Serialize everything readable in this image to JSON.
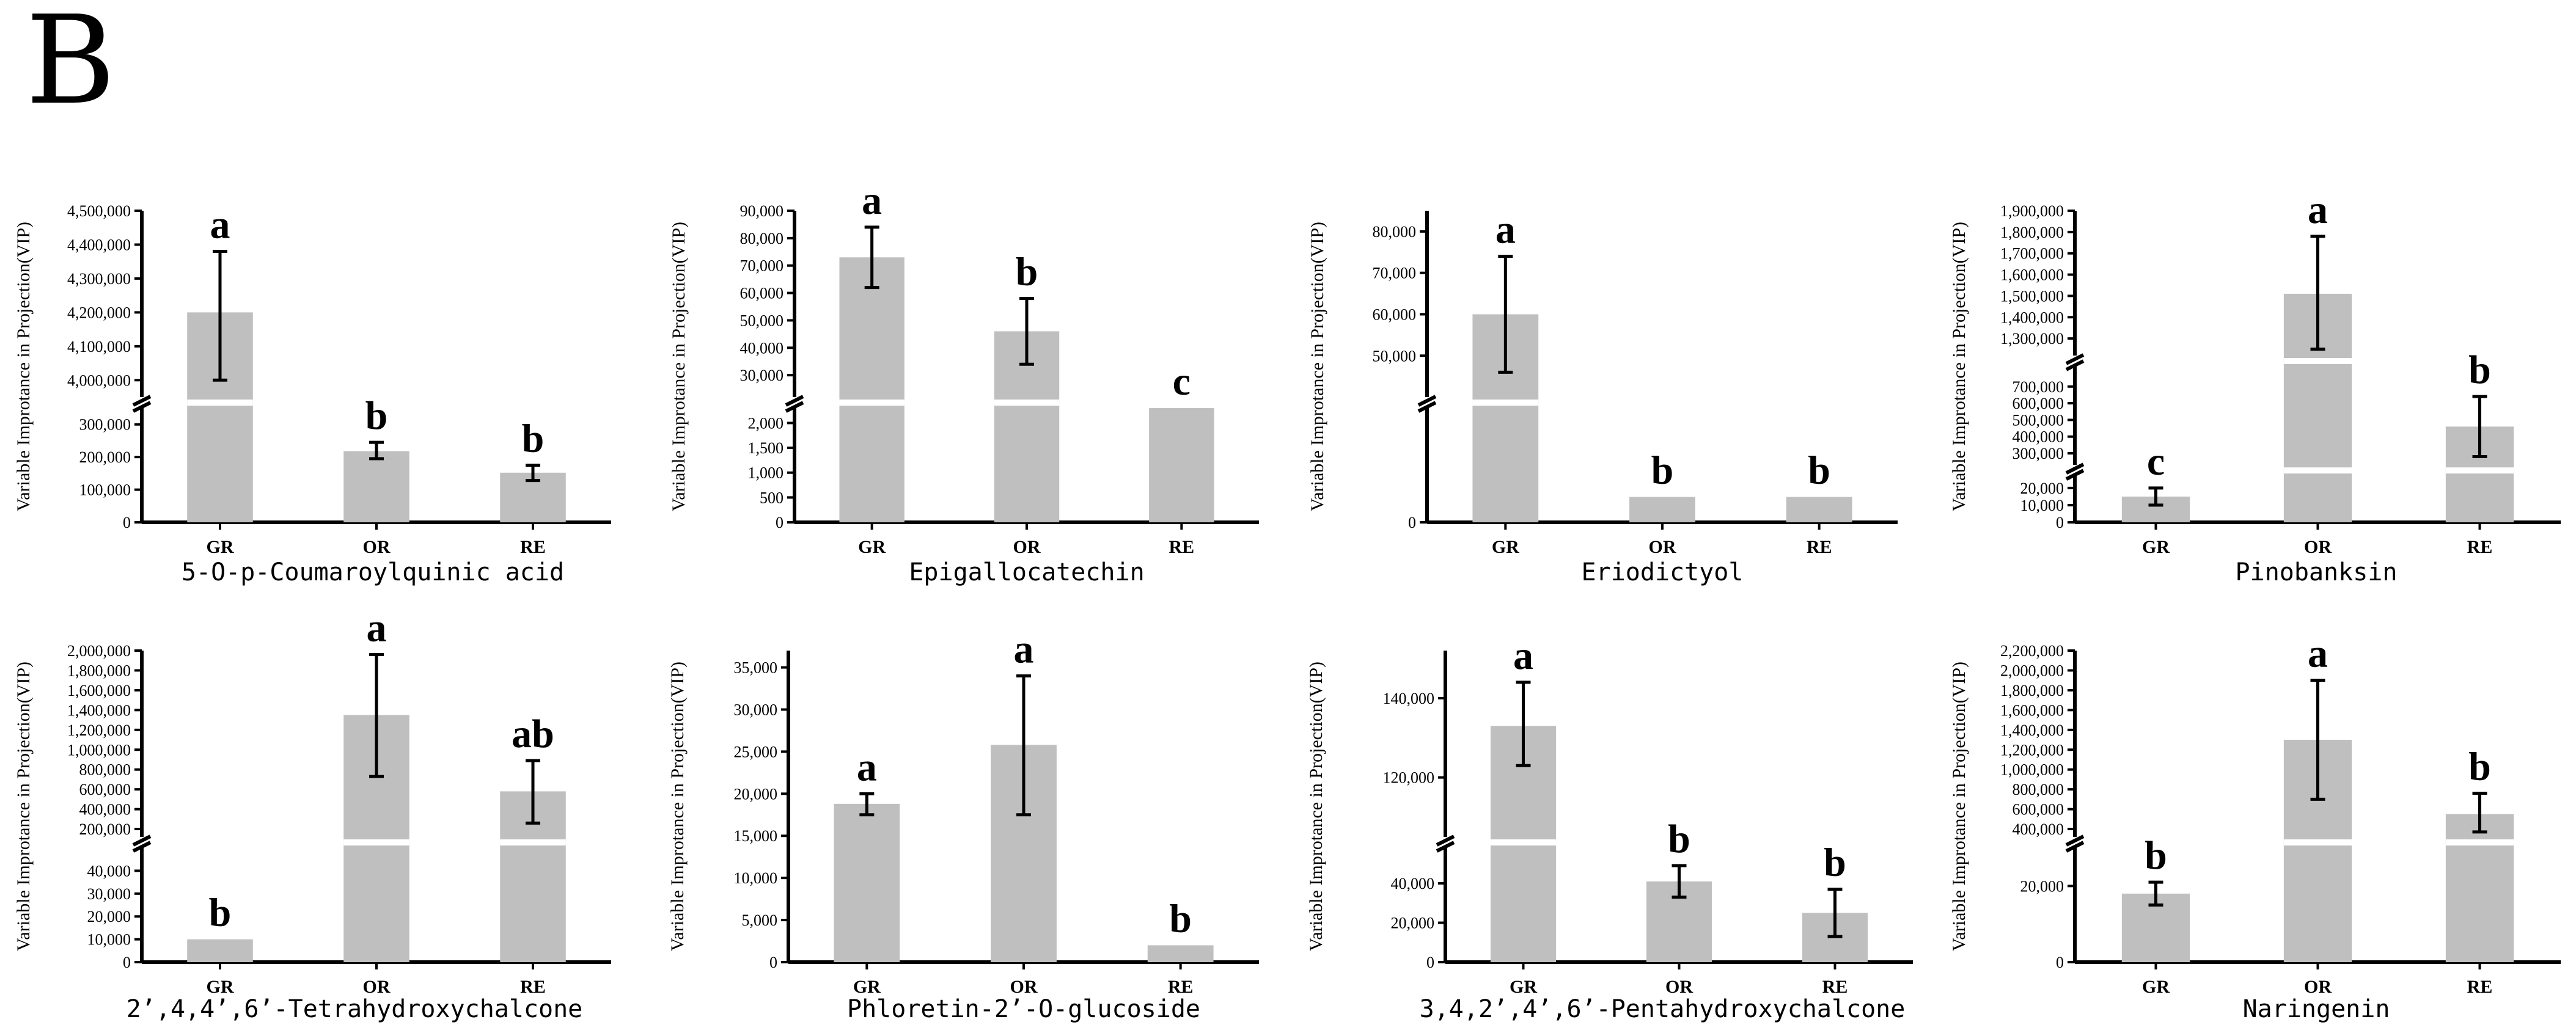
{
  "panel_label": "B",
  "chart_data": [
    {
      "type": "bar",
      "title": "5-O-p-Coumaroylquinic acid",
      "ylabel": "Variable Improtance in Projection(VIP)",
      "categories": [
        "GR",
        "OR",
        "RE"
      ],
      "values": [
        4200000,
        218000,
        152000
      ],
      "error_low": [
        4000000,
        195000,
        128000
      ],
      "error_high": [
        4380000,
        245000,
        175000
      ],
      "significance": [
        "a",
        "b",
        "b"
      ],
      "segments": [
        [
          0,
          350000
        ],
        [
          3950000,
          4500000
        ]
      ],
      "ticks": [
        [
          0,
          100000,
          200000,
          300000
        ],
        [
          4000000,
          4100000,
          4200000,
          4300000,
          4400000,
          4500000
        ]
      ],
      "tick_labels": [
        [
          "0",
          "100,000",
          "200,000",
          "300,000"
        ],
        [
          "4,000,000",
          "4,100,000",
          "4,200,000",
          "4,300,000",
          "4,400,000",
          "4,500,000"
        ]
      ]
    },
    {
      "type": "bar",
      "title": "Epigallocatechin",
      "ylabel": "Variable Improtance in Projection(VIP)",
      "categories": [
        "GR",
        "OR",
        "RE"
      ],
      "values": [
        73000,
        46000,
        2300
      ],
      "error_low": [
        62000,
        34000,
        null
      ],
      "error_high": [
        84000,
        58000,
        null
      ],
      "significance": [
        "a",
        "b",
        "c"
      ],
      "segments": [
        [
          0,
          2300
        ],
        [
          22000,
          90000
        ]
      ],
      "ticks": [
        [
          0,
          500,
          1000,
          1500,
          2000
        ],
        [
          30000,
          40000,
          50000,
          60000,
          70000,
          80000,
          90000
        ]
      ],
      "tick_labels": [
        [
          "0",
          "500",
          "1,000",
          "1,500",
          "2,000"
        ],
        [
          "30,000",
          "40,000",
          "50,000",
          "60,000",
          "70,000",
          "80,000",
          "90,000"
        ]
      ]
    },
    {
      "type": "bar",
      "title": "Eriodictyol",
      "ylabel": "Variable Improtance in Projection(VIP)",
      "categories": [
        "GR",
        "OR",
        "RE"
      ],
      "values": [
        60000,
        2000,
        2000
      ],
      "error_low": [
        46000,
        null,
        null
      ],
      "error_high": [
        74000,
        null,
        null
      ],
      "significance": [
        "a",
        "b",
        "b"
      ],
      "segments": [
        [
          0,
          9000
        ],
        [
          40000,
          85000
        ]
      ],
      "ticks": [
        [
          0
        ],
        [
          50000,
          60000,
          70000,
          80000
        ]
      ],
      "tick_labels": [
        [
          "0"
        ],
        [
          "50,000",
          "60,000",
          "70,000",
          "80,000"
        ]
      ]
    },
    {
      "type": "bar",
      "title": "Pinobanksin",
      "ylabel": "Variable Improtance in Projection(VIP)",
      "categories": [
        "GR",
        "OR",
        "RE"
      ],
      "values": [
        15000,
        1510000,
        460000
      ],
      "error_low": [
        10000,
        1250000,
        280000
      ],
      "error_high": [
        20000,
        1780000,
        640000
      ],
      "significance": [
        "c",
        "a",
        "b"
      ],
      "segments": [
        [
          0,
          27000
        ],
        [
          230000,
          820000
        ],
        [
          1220000,
          1900000
        ]
      ],
      "ticks": [
        [
          0,
          10000,
          20000
        ],
        [
          300000,
          400000,
          500000,
          600000,
          700000
        ],
        [
          1300000,
          1400000,
          1500000,
          1600000,
          1700000,
          1800000,
          1900000
        ]
      ],
      "tick_labels": [
        [
          "0",
          "10,000",
          "20,000"
        ],
        [
          "300,000",
          "400,000",
          "500,000",
          "600,000",
          "700,000"
        ],
        [
          "1,300,000",
          "1,400,000",
          "1,500,000",
          "1,600,000",
          "1,700,000",
          "1,800,000",
          "1,900,000"
        ]
      ]
    },
    {
      "type": "bar",
      "title": "2’,4,4’,6’-Tetrahydroxychalcone",
      "ylabel": "Variable Improtance in Projection(VIP)",
      "categories": [
        "GR",
        "OR",
        "RE"
      ],
      "values": [
        10000,
        1350000,
        580000
      ],
      "error_low": [
        null,
        730000,
        260000
      ],
      "error_high": [
        null,
        1960000,
        890000
      ],
      "significance": [
        "b",
        "a",
        "ab"
      ],
      "segments": [
        [
          0,
          50000
        ],
        [
          120000,
          2000000
        ]
      ],
      "ticks": [
        [
          0,
          10000,
          20000,
          30000,
          40000
        ],
        [
          200000,
          400000,
          600000,
          800000,
          1000000,
          1200000,
          1400000,
          1600000,
          1800000,
          2000000
        ]
      ],
      "tick_labels": [
        [
          "0",
          "10,000",
          "20,000",
          "30,000",
          "40,000"
        ],
        [
          "200,000",
          "400,000",
          "600,000",
          "800,000",
          "1,000,000",
          "1,200,000",
          "1,400,000",
          "1,600,000",
          "1,800,000",
          "2,000,000"
        ]
      ]
    },
    {
      "type": "bar",
      "title": "Phloretin-2’-O-glucoside",
      "ylabel": "Variable Improtance in Projection(VIP)",
      "categories": [
        "GR",
        "OR",
        "RE"
      ],
      "values": [
        18800,
        25800,
        2000
      ],
      "error_low": [
        17500,
        17500,
        null
      ],
      "error_high": [
        20000,
        34000,
        null
      ],
      "significance": [
        "a",
        "a",
        "b"
      ],
      "segments": [
        [
          0,
          37000
        ]
      ],
      "ticks": [
        [
          0,
          5000,
          10000,
          15000,
          20000,
          25000,
          30000,
          35000
        ]
      ],
      "tick_labels": [
        [
          "0",
          "5,000",
          "10,000",
          "15,000",
          "20,000",
          "25,000",
          "30,000",
          "35,000"
        ]
      ]
    },
    {
      "type": "bar",
      "title": "3,4,2’,4’,6’-Pentahydroxychalcone",
      "ylabel": "Variable Improtance in Projection(VIP)",
      "categories": [
        "GR",
        "OR",
        "RE"
      ],
      "values": [
        133000,
        41000,
        25000
      ],
      "error_low": [
        123000,
        33000,
        13000
      ],
      "error_high": [
        144000,
        49000,
        37000
      ],
      "significance": [
        "a",
        "b",
        "b"
      ],
      "segments": [
        [
          0,
          58000
        ],
        [
          105000,
          152000
        ]
      ],
      "ticks": [
        [
          0,
          20000,
          40000
        ],
        [
          120000,
          140000
        ]
      ],
      "tick_labels": [
        [
          "0",
          "20,000",
          "40,000"
        ],
        [
          "120,000",
          "140,000"
        ]
      ]
    },
    {
      "type": "bar",
      "title": "Naringenin",
      "ylabel": "Variable Improtance in Projection(VIP)",
      "categories": [
        "GR",
        "OR",
        "RE"
      ],
      "values": [
        18000,
        1300000,
        550000
      ],
      "error_low": [
        15000,
        700000,
        370000
      ],
      "error_high": [
        21000,
        1900000,
        760000
      ],
      "significance": [
        "b",
        "a",
        "b"
      ],
      "segments": [
        [
          0,
          30000
        ],
        [
          320000,
          2200000
        ]
      ],
      "ticks": [
        [
          0,
          20000
        ],
        [
          400000,
          600000,
          800000,
          1000000,
          1200000,
          1400000,
          1600000,
          1800000,
          2000000,
          2200000
        ]
      ],
      "tick_labels": [
        [
          "0",
          "20,000"
        ],
        [
          "400,000",
          "600,000",
          "800,000",
          "1,000,000",
          "1,200,000",
          "1,400,000",
          "1,600,000",
          "1,800,000",
          "2,000,000",
          "2,200,000"
        ]
      ]
    }
  ]
}
